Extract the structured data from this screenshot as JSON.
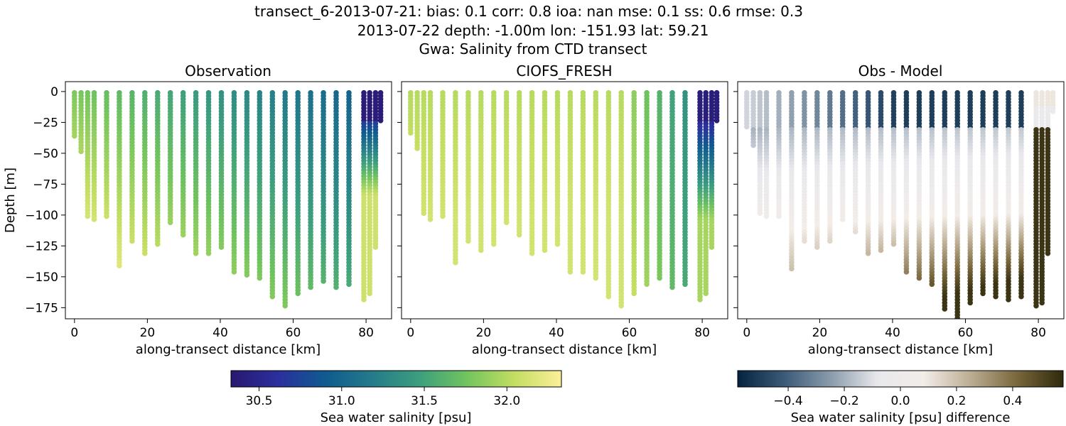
{
  "suptitle": [
    "transect_6-2013-07-21: bias: 0.1  corr: 0.8  ioa: nan  mse: 0.1  ss: 0.6  rmse: 0.3",
    "2013-07-22 depth: -1.00m lon: -151.93 lat: 59.21",
    "Gwa: Salinity from CTD transect"
  ],
  "colors": {
    "haline": [
      "#2a1870",
      "#2b2f9e",
      "#0f5b8f",
      "#257b8a",
      "#3d9f7e",
      "#72c45e",
      "#c3de62",
      "#fdef9a"
    ],
    "diff": [
      "#04243e",
      "#3b5a78",
      "#8a9bab",
      "#e8e8ec",
      "#f3ede8",
      "#bcae94",
      "#7a673c",
      "#2e2a0c"
    ]
  },
  "chart_data": [
    {
      "type": "scatter",
      "title": "Observation",
      "xlabel": "along-transect distance [km]",
      "ylabel": "Depth [m]",
      "xlim": [
        -2.5,
        87
      ],
      "ylim": [
        -184,
        8
      ],
      "xticks": [
        0,
        20,
        40,
        60,
        80
      ],
      "yticks": [
        0,
        -25,
        -50,
        -75,
        -100,
        -125,
        -150,
        -175
      ],
      "colorbar": "salinity",
      "casts": [
        {
          "x": 0,
          "max_depth": -36
        },
        {
          "x": 1.8,
          "max_depth": -49
        },
        {
          "x": 3.6,
          "max_depth": -103
        },
        {
          "x": 5.4,
          "max_depth": -105
        },
        {
          "x": 8.8,
          "max_depth": -103
        },
        {
          "x": 12.3,
          "max_depth": -143
        },
        {
          "x": 15.8,
          "max_depth": -123
        },
        {
          "x": 19.3,
          "max_depth": -131
        },
        {
          "x": 22.8,
          "max_depth": -124
        },
        {
          "x": 26.3,
          "max_depth": -106
        },
        {
          "x": 29.8,
          "max_depth": -117
        },
        {
          "x": 33.3,
          "max_depth": -133
        },
        {
          "x": 36.8,
          "max_depth": -131
        },
        {
          "x": 40.3,
          "max_depth": -126
        },
        {
          "x": 43.8,
          "max_depth": -146
        },
        {
          "x": 47.3,
          "max_depth": -149
        },
        {
          "x": 50.8,
          "max_depth": -153
        },
        {
          "x": 54.3,
          "max_depth": -168
        },
        {
          "x": 57.8,
          "max_depth": -174
        },
        {
          "x": 61.3,
          "max_depth": -165
        },
        {
          "x": 64.8,
          "max_depth": -159
        },
        {
          "x": 68.3,
          "max_depth": -154
        },
        {
          "x": 71.8,
          "max_depth": -160
        },
        {
          "x": 75.3,
          "max_depth": -157
        },
        {
          "x": 79.4,
          "max_depth": -169
        },
        {
          "x": 81.0,
          "max_depth": -165
        },
        {
          "x": 82.6,
          "max_depth": -127
        },
        {
          "x": 84.0,
          "max_depth": -24
        }
      ]
    },
    {
      "type": "scatter",
      "title": "CIOFS_FRESH",
      "xlabel": "along-transect distance [km]",
      "ylabel": "",
      "xlim": [
        -2.5,
        87
      ],
      "ylim": [
        -184,
        8
      ],
      "xticks": [
        0,
        20,
        40,
        60,
        80
      ],
      "yticks": [
        0,
        -25,
        -50,
        -75,
        -100,
        -125,
        -150,
        -175
      ],
      "colorbar": "salinity",
      "casts": [
        {
          "x": 0,
          "max_depth": -34
        },
        {
          "x": 1.8,
          "max_depth": -48
        },
        {
          "x": 3.6,
          "max_depth": -99
        },
        {
          "x": 5.4,
          "max_depth": -104
        },
        {
          "x": 8.8,
          "max_depth": -103
        },
        {
          "x": 12.3,
          "max_depth": -139
        },
        {
          "x": 15.8,
          "max_depth": -122
        },
        {
          "x": 19.3,
          "max_depth": -129
        },
        {
          "x": 22.8,
          "max_depth": -124
        },
        {
          "x": 26.3,
          "max_depth": -106
        },
        {
          "x": 29.8,
          "max_depth": -116
        },
        {
          "x": 33.3,
          "max_depth": -131
        },
        {
          "x": 36.8,
          "max_depth": -129
        },
        {
          "x": 40.3,
          "max_depth": -125
        },
        {
          "x": 43.8,
          "max_depth": -146
        },
        {
          "x": 47.3,
          "max_depth": -148
        },
        {
          "x": 50.8,
          "max_depth": -152
        },
        {
          "x": 54.3,
          "max_depth": -168
        },
        {
          "x": 57.8,
          "max_depth": -174
        },
        {
          "x": 61.3,
          "max_depth": -165
        },
        {
          "x": 64.8,
          "max_depth": -158
        },
        {
          "x": 68.3,
          "max_depth": -153
        },
        {
          "x": 71.8,
          "max_depth": -160
        },
        {
          "x": 75.3,
          "max_depth": -157
        },
        {
          "x": 79.4,
          "max_depth": -170
        },
        {
          "x": 81.0,
          "max_depth": -165
        },
        {
          "x": 82.6,
          "max_depth": -128
        },
        {
          "x": 84.0,
          "max_depth": -24
        }
      ]
    },
    {
      "type": "scatter",
      "title": "Obs - Model",
      "xlabel": "along-transect distance [km]",
      "ylabel": "",
      "xlim": [
        -2.5,
        87
      ],
      "ylim": [
        -184,
        8
      ],
      "xticks": [
        0,
        20,
        40,
        60,
        80
      ],
      "yticks": [
        0,
        -25,
        -50,
        -75,
        -100,
        -125,
        -150,
        -175
      ],
      "colorbar": "difference",
      "casts": [
        {
          "x": 0,
          "max_depth": -29
        },
        {
          "x": 1.8,
          "max_depth": -44
        },
        {
          "x": 3.6,
          "max_depth": -100
        },
        {
          "x": 5.4,
          "max_depth": -103
        },
        {
          "x": 8.8,
          "max_depth": -101
        },
        {
          "x": 12.3,
          "max_depth": -145
        },
        {
          "x": 15.8,
          "max_depth": -121
        },
        {
          "x": 19.3,
          "max_depth": -128
        },
        {
          "x": 22.8,
          "max_depth": -122
        },
        {
          "x": 26.3,
          "max_depth": -105
        },
        {
          "x": 29.8,
          "max_depth": -115
        },
        {
          "x": 33.3,
          "max_depth": -133
        },
        {
          "x": 36.8,
          "max_depth": -130
        },
        {
          "x": 40.3,
          "max_depth": -125
        },
        {
          "x": 43.8,
          "max_depth": -146
        },
        {
          "x": 47.3,
          "max_depth": -151
        },
        {
          "x": 50.8,
          "max_depth": -156
        },
        {
          "x": 54.3,
          "max_depth": -176
        },
        {
          "x": 57.8,
          "max_depth": -184
        },
        {
          "x": 61.3,
          "max_depth": -171
        },
        {
          "x": 64.8,
          "max_depth": -164
        },
        {
          "x": 68.3,
          "max_depth": -168
        },
        {
          "x": 71.8,
          "max_depth": -170
        },
        {
          "x": 75.3,
          "max_depth": -167
        },
        {
          "x": 79.4,
          "max_depth": -175
        },
        {
          "x": 81.0,
          "max_depth": -171
        },
        {
          "x": 82.6,
          "max_depth": -132
        },
        {
          "x": 84.0,
          "max_depth": -17
        }
      ]
    }
  ],
  "colorbars": {
    "salinity": {
      "label": "Sea water salinity [psu]",
      "range": [
        30.33,
        32.33
      ],
      "ticks": [
        30.5,
        31.0,
        31.5,
        32.0
      ],
      "tick_labels": [
        "30.5",
        "31.0",
        "31.5",
        "32.0"
      ]
    },
    "difference": {
      "label": "Sea water salinity [psu] difference",
      "range": [
        -0.58,
        0.58
      ],
      "ticks": [
        -0.4,
        -0.2,
        0.0,
        0.2,
        0.4
      ],
      "tick_labels": [
        "−0.4",
        "−0.2",
        "0.0",
        "0.2",
        "0.4"
      ]
    }
  }
}
